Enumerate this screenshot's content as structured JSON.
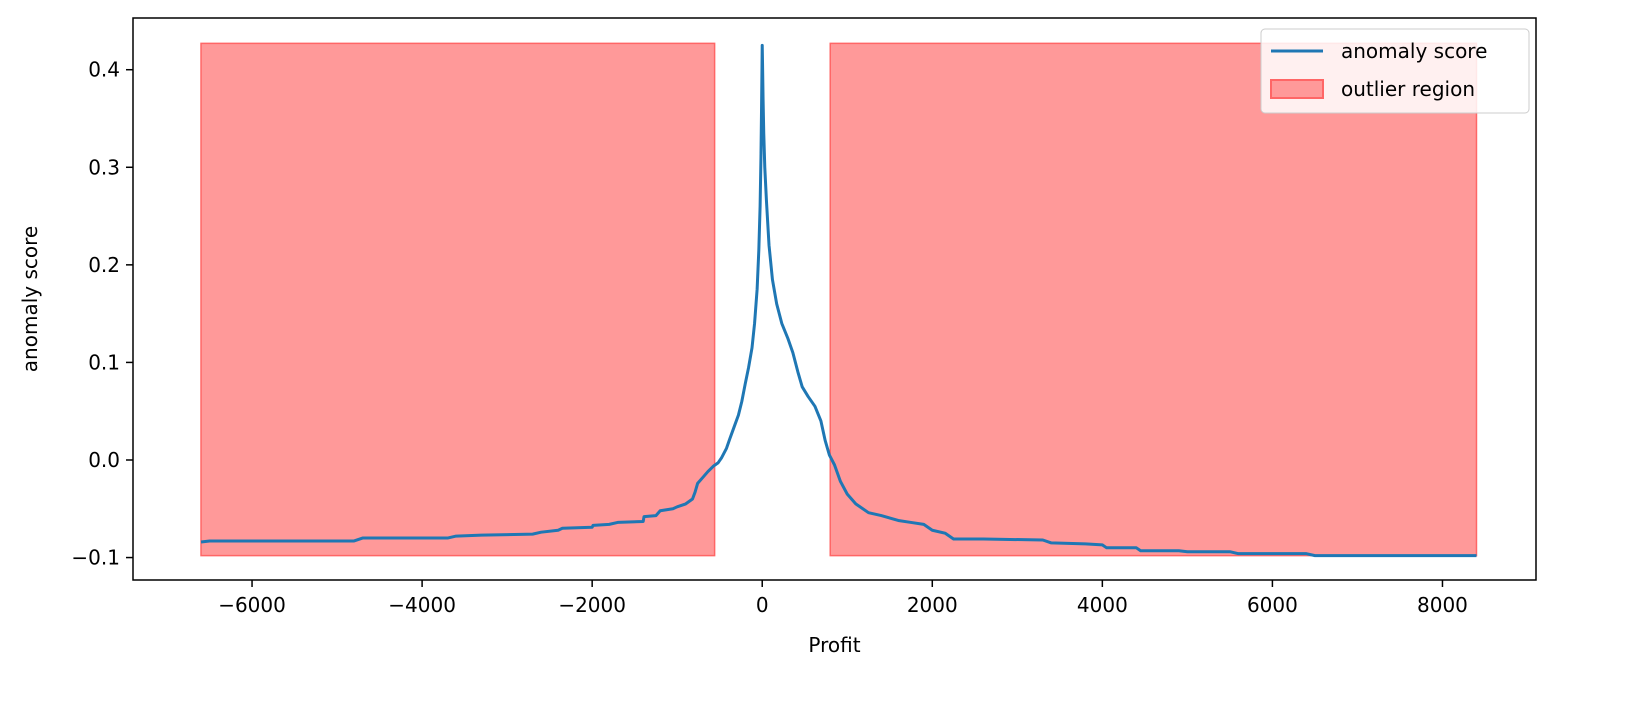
{
  "chart_data": {
    "type": "line",
    "title": "",
    "xlabel": "Profit",
    "ylabel": "anomaly score",
    "xlim": [
      -7400,
      9100
    ],
    "ylim": [
      -0.123,
      0.453
    ],
    "xticks": [
      -6000,
      -4000,
      -2000,
      0,
      2000,
      4000,
      6000,
      8000
    ],
    "xtick_labels": [
      "−6000",
      "−4000",
      "−2000",
      "0",
      "2000",
      "4000",
      "6000",
      "8000"
    ],
    "yticks": [
      -0.1,
      0.0,
      0.1,
      0.2,
      0.3,
      0.4
    ],
    "ytick_labels": [
      "−0.1",
      "0.0",
      "0.1",
      "0.2",
      "0.3",
      "0.4"
    ],
    "grid": false,
    "legend_position": "top-right",
    "series": [
      {
        "name": "anomaly score",
        "color": "#1f77b4",
        "points": [
          [
            -6600,
            -0.084
          ],
          [
            -6500,
            -0.083
          ],
          [
            -4800,
            -0.083
          ],
          [
            -4700,
            -0.08
          ],
          [
            -3700,
            -0.08
          ],
          [
            -3600,
            -0.078
          ],
          [
            -3300,
            -0.077
          ],
          [
            -2700,
            -0.076
          ],
          [
            -2600,
            -0.074
          ],
          [
            -2400,
            -0.072
          ],
          [
            -2350,
            -0.07
          ],
          [
            -2000,
            -0.069
          ],
          [
            -1990,
            -0.067
          ],
          [
            -1800,
            -0.066
          ],
          [
            -1700,
            -0.064
          ],
          [
            -1400,
            -0.063
          ],
          [
            -1390,
            -0.058
          ],
          [
            -1250,
            -0.057
          ],
          [
            -1200,
            -0.052
          ],
          [
            -1050,
            -0.05
          ],
          [
            -1000,
            -0.048
          ],
          [
            -900,
            -0.045
          ],
          [
            -820,
            -0.04
          ],
          [
            -790,
            -0.033
          ],
          [
            -760,
            -0.024
          ],
          [
            -700,
            -0.018
          ],
          [
            -640,
            -0.012
          ],
          [
            -570,
            -0.006
          ],
          [
            -520,
            -0.003
          ],
          [
            -480,
            0.002
          ],
          [
            -420,
            0.012
          ],
          [
            -380,
            0.022
          ],
          [
            -330,
            0.034
          ],
          [
            -280,
            0.046
          ],
          [
            -240,
            0.06
          ],
          [
            -200,
            0.078
          ],
          [
            -160,
            0.095
          ],
          [
            -120,
            0.115
          ],
          [
            -90,
            0.14
          ],
          [
            -60,
            0.175
          ],
          [
            -40,
            0.215
          ],
          [
            -25,
            0.26
          ],
          [
            -15,
            0.31
          ],
          [
            -8,
            0.36
          ],
          [
            -3,
            0.4
          ],
          [
            0,
            0.425
          ],
          [
            4,
            0.405
          ],
          [
            10,
            0.37
          ],
          [
            18,
            0.335
          ],
          [
            30,
            0.3
          ],
          [
            50,
            0.265
          ],
          [
            80,
            0.22
          ],
          [
            120,
            0.185
          ],
          [
            170,
            0.16
          ],
          [
            230,
            0.14
          ],
          [
            300,
            0.125
          ],
          [
            360,
            0.11
          ],
          [
            420,
            0.09
          ],
          [
            470,
            0.075
          ],
          [
            540,
            0.065
          ],
          [
            620,
            0.055
          ],
          [
            690,
            0.04
          ],
          [
            740,
            0.02
          ],
          [
            790,
            0.005
          ],
          [
            850,
            -0.005
          ],
          [
            920,
            -0.022
          ],
          [
            1000,
            -0.035
          ],
          [
            1100,
            -0.045
          ],
          [
            1250,
            -0.054
          ],
          [
            1400,
            -0.057
          ],
          [
            1600,
            -0.062
          ],
          [
            1750,
            -0.064
          ],
          [
            1900,
            -0.066
          ],
          [
            2000,
            -0.072
          ],
          [
            2150,
            -0.075
          ],
          [
            2250,
            -0.081
          ],
          [
            2600,
            -0.081
          ],
          [
            3300,
            -0.082
          ],
          [
            3400,
            -0.085
          ],
          [
            3800,
            -0.086
          ],
          [
            4000,
            -0.087
          ],
          [
            4050,
            -0.09
          ],
          [
            4400,
            -0.09
          ],
          [
            4450,
            -0.093
          ],
          [
            4900,
            -0.093
          ],
          [
            5000,
            -0.094
          ],
          [
            5500,
            -0.094
          ],
          [
            5600,
            -0.096
          ],
          [
            6400,
            -0.096
          ],
          [
            6500,
            -0.098
          ],
          [
            8400,
            -0.098
          ]
        ]
      }
    ],
    "regions": [
      {
        "name": "outlier region",
        "x0": -6600,
        "x1": -560,
        "y0": -0.098,
        "y1": 0.427
      },
      {
        "name": "outlier region",
        "x0": 800,
        "x1": 8400,
        "y0": -0.098,
        "y1": 0.427
      }
    ],
    "region_fill_color": "#ff9999",
    "region_edge_color": "#ff6666",
    "legend": [
      {
        "label": "anomaly score",
        "kind": "line"
      },
      {
        "label": "outlier region",
        "kind": "patch"
      }
    ]
  }
}
